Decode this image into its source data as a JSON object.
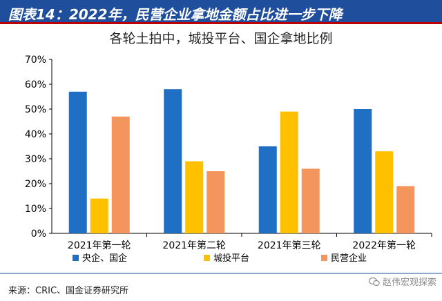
{
  "header": {
    "title": "图表14：2022年，民营企业拿地金额占比进一步下降"
  },
  "chart_data": {
    "type": "bar",
    "title": "各轮土拍中，城投平台、国企拿地比例",
    "categories": [
      "2021年第一轮",
      "2021年第二轮",
      "2021年第三轮",
      "2022年第一轮"
    ],
    "series": [
      {
        "name": "央企、国企",
        "values": [
          57,
          58,
          35,
          50
        ],
        "color": "#1f6fc5"
      },
      {
        "name": "城投平台",
        "values": [
          14,
          29,
          49,
          33
        ],
        "color": "#ffc000"
      },
      {
        "name": "民营企业",
        "values": [
          47,
          25,
          26,
          19
        ],
        "color": "#f4955e"
      }
    ],
    "ylim": [
      0,
      70
    ],
    "yticks": [
      "0%",
      "10%",
      "20%",
      "30%",
      "40%",
      "50%",
      "60%",
      "70%"
    ],
    "legend_position": "bottom",
    "grid": false
  },
  "footer": {
    "source": "来源：CRIC、国金证券研究所"
  },
  "watermark": {
    "text": "赵伟宏观探索"
  }
}
